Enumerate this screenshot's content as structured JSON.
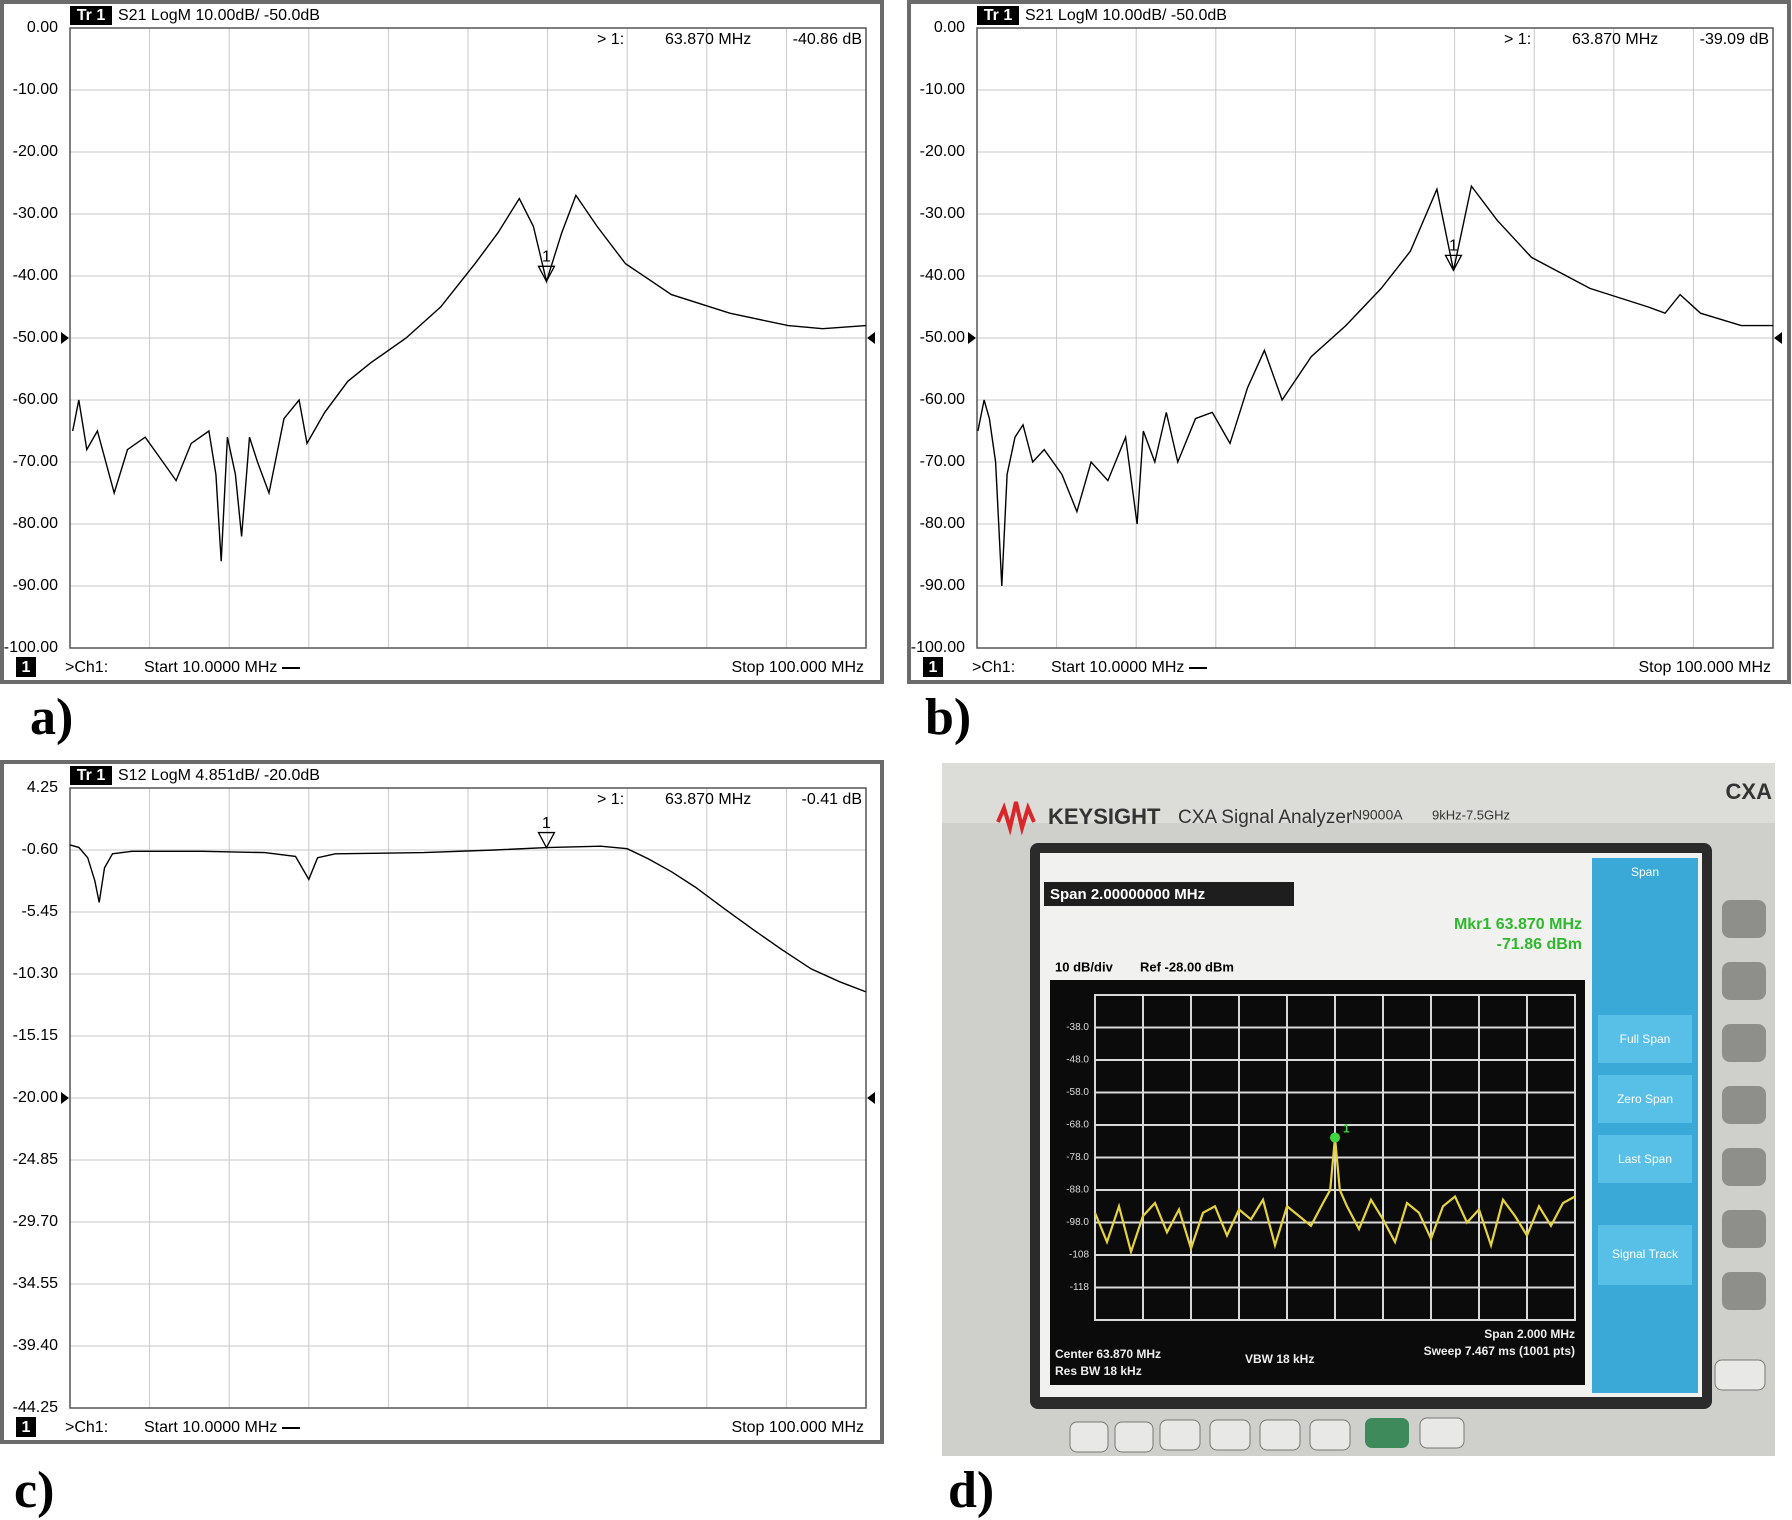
{
  "chart_data": [
    {
      "type": "line",
      "panel_label": "a)",
      "trace": "Tr 1",
      "title": "S21 LogM 10.00dB/ -50.0dB",
      "channel_number": "1",
      "channel": ">Ch1:",
      "start": "Start 10.0000 MHz",
      "stop": "Stop 100.000 MHz",
      "xlim": [
        10,
        100
      ],
      "xticks": [
        10,
        19,
        28,
        37,
        46,
        55,
        64,
        73,
        82,
        91,
        100
      ],
      "ylim": [
        -100,
        0
      ],
      "yticks": [
        {
          "value": 0,
          "label": "0.00"
        },
        {
          "value": -10,
          "label": "-10.00"
        },
        {
          "value": -20,
          "label": "-20.00"
        },
        {
          "value": -30,
          "label": "-30.00"
        },
        {
          "value": -40,
          "label": "-40.00"
        },
        {
          "value": -50,
          "label": "-50.00"
        },
        {
          "value": -60,
          "label": "-60.00"
        },
        {
          "value": -70,
          "label": "-70.00"
        },
        {
          "value": -80,
          "label": "-80.00"
        },
        {
          "value": -90,
          "label": "-90.00"
        },
        {
          "value": -100,
          "label": "-100.00"
        }
      ],
      "grid": true,
      "reference_level": -50,
      "x": [
        10.3,
        11,
        11.9,
        13.1,
        15,
        16.5,
        18.5,
        20.5,
        22,
        23.7,
        25.7,
        26.5,
        27.1,
        27.8,
        28.7,
        29.4,
        30.3,
        31.2,
        32.5,
        34.2,
        35.9,
        36.8,
        38.8,
        41.4,
        44,
        48,
        51.9,
        55.8,
        58.4,
        60.8,
        62.4,
        63.87,
        65.6,
        67.2,
        69.6,
        72.8,
        78,
        84.6,
        91.2,
        95.1,
        100
      ],
      "series": [
        {
          "color": "#000000",
          "values": [
            -65,
            -60,
            -68,
            -65,
            -75,
            -68,
            -66,
            -70,
            -73,
            -67,
            -65,
            -72,
            -86,
            -66,
            -72,
            -82,
            -66,
            -70,
            -75,
            -63,
            -60,
            -67,
            -62,
            -57,
            -54,
            -50,
            -45,
            -38,
            -33,
            -27.5,
            -32,
            -40.86,
            -33,
            -27,
            -32,
            -38,
            -43,
            -46,
            -48,
            -48.5,
            -48
          ]
        }
      ],
      "marker": {
        "label": "1",
        "prefix": "> 1:",
        "x": 63.87,
        "x_label": "63.870 MHz",
        "value": -40.86,
        "value_label": "-40.86 dB"
      }
    },
    {
      "type": "line",
      "panel_label": "b)",
      "trace": "Tr 1",
      "title": "S21 LogM 10.00dB/ -50.0dB",
      "channel_number": "1",
      "channel": ">Ch1:",
      "start": "Start 10.0000 MHz",
      "stop": "Stop 100.000 MHz",
      "xlim": [
        10,
        100
      ],
      "xticks": [
        10,
        19,
        28,
        37,
        46,
        55,
        64,
        73,
        82,
        91,
        100
      ],
      "ylim": [
        -100,
        0
      ],
      "yticks": [
        {
          "value": 0,
          "label": "0.00"
        },
        {
          "value": -10,
          "label": "-10.00"
        },
        {
          "value": -20,
          "label": "-20.00"
        },
        {
          "value": -30,
          "label": "-30.00"
        },
        {
          "value": -40,
          "label": "-40.00"
        },
        {
          "value": -50,
          "label": "-50.00"
        },
        {
          "value": -60,
          "label": "-60.00"
        },
        {
          "value": -70,
          "label": "-70.00"
        },
        {
          "value": -80,
          "label": "-80.00"
        },
        {
          "value": -90,
          "label": "-90.00"
        },
        {
          "value": -100,
          "label": "-100.00"
        }
      ],
      "grid": true,
      "reference_level": -50,
      "x": [
        10.1,
        10.8,
        11.4,
        12.1,
        12.8,
        13.4,
        14.3,
        15.2,
        16.3,
        17.6,
        19.6,
        21.3,
        22.9,
        24.8,
        26.8,
        28.1,
        28.8,
        30.1,
        31.4,
        32.7,
        34.7,
        36.6,
        38.6,
        40.6,
        42.5,
        44.5,
        47.8,
        51.7,
        55.7,
        59,
        62,
        63.87,
        65.9,
        68.8,
        72.7,
        79.3,
        85.9,
        87.8,
        89.5,
        91.8,
        96.4,
        100
      ],
      "series": [
        {
          "color": "#000000",
          "values": [
            -65,
            -60,
            -63,
            -70,
            -90,
            -72,
            -66,
            -64,
            -70,
            -68,
            -72,
            -78,
            -70,
            -73,
            -66,
            -80,
            -65,
            -70,
            -62,
            -70,
            -63,
            -62,
            -67,
            -58,
            -52,
            -60,
            -53,
            -48,
            -42,
            -36,
            -26,
            -39.09,
            -25.5,
            -31,
            -37,
            -42,
            -45,
            -46,
            -43,
            -46,
            -48,
            -48
          ]
        }
      ],
      "marker": {
        "label": "1",
        "prefix": "> 1:",
        "x": 63.87,
        "x_label": "63.870 MHz",
        "value": -39.09,
        "value_label": "-39.09 dB"
      }
    },
    {
      "type": "line",
      "panel_label": "c)",
      "trace": "Tr 1",
      "title": "S12 LogM 4.851dB/ -20.0dB",
      "channel_number": "1",
      "channel": ">Ch1:",
      "start": "Start 10.0000 MHz",
      "stop": "Stop 100.000 MHz",
      "xlim": [
        10,
        100
      ],
      "xticks": [
        10,
        19,
        28,
        37,
        46,
        55,
        64,
        73,
        82,
        91,
        100
      ],
      "ylim": [
        -44.25,
        4.25
      ],
      "yticks": [
        4.25,
        {
          "value": -0.6,
          "label": "-0.60"
        },
        -5.45,
        {
          "value": -10.3,
          "label": "-10.30"
        },
        -15.15,
        {
          "value": -20,
          "label": "-20.00"
        },
        -24.85,
        {
          "value": -29.7,
          "label": "-29.70"
        },
        -34.55,
        {
          "value": -39.4,
          "label": "-39.40"
        },
        -44.25
      ],
      "grid": true,
      "reference_level": -20,
      "x": [
        10,
        11,
        12,
        12.8,
        13.3,
        13.9,
        14.8,
        17,
        25,
        32,
        35.5,
        37,
        38,
        40,
        50,
        58,
        63.87,
        70,
        73,
        75.4,
        78,
        80.7,
        84,
        87.2,
        90.5,
        93.8,
        97,
        100
      ],
      "series": [
        {
          "color": "#000000",
          "values": [
            -0.2,
            -0.4,
            -1.2,
            -3,
            -4.7,
            -2,
            -0.9,
            -0.7,
            -0.7,
            -0.8,
            -1.1,
            -2.9,
            -1.2,
            -0.9,
            -0.8,
            -0.6,
            -0.41,
            -0.3,
            -0.5,
            -1.3,
            -2.3,
            -3.5,
            -5.2,
            -6.8,
            -8.4,
            -9.9,
            -10.9,
            -11.7
          ]
        }
      ],
      "marker": {
        "label": "1",
        "prefix": "> 1:",
        "x": 63.87,
        "x_label": "63.870 MHz",
        "value": -0.41,
        "value_label": "-0.41 dB"
      }
    },
    {
      "type": "spectrum",
      "panel_label": "d)",
      "brand": "KEYSIGHT",
      "model": "CXA Signal Analyzer",
      "model_number": "N9000A",
      "frequency_range": "9kHz-7.5GHz",
      "badge": "CXA",
      "span": "Span 2.00000000 MHz",
      "scale": "10 dB/div",
      "reference": "Ref -28.00 dBm",
      "center": "Center 63.870 MHz",
      "res_bw": "Res BW 18 kHz",
      "vbw": "VBW 18 kHz",
      "span_footer": "Span 2.000 MHz",
      "sweep": "Sweep 7.467 ms (1001 pts)",
      "softkeys": [
        "Span",
        "Full Span",
        "Zero Span",
        "Last Span",
        "Signal Track"
      ],
      "xlim": [
        62.87,
        64.87
      ],
      "xticks": [
        62.87,
        63.07,
        63.27,
        63.47,
        63.67,
        63.87,
        64.07,
        64.27,
        64.47,
        64.67,
        64.87
      ],
      "ylim": [
        -128,
        -28
      ],
      "yticks": [
        {
          "value": -38,
          "label": "-38.0"
        },
        {
          "value": -48,
          "label": "-48.0"
        },
        {
          "value": -58,
          "label": "-58.0"
        },
        {
          "value": -68,
          "label": "-68.0"
        },
        {
          "value": -78,
          "label": "-78.0"
        },
        {
          "value": -88,
          "label": "-88.0"
        },
        {
          "value": -98,
          "label": "-98.0"
        },
        -108,
        -118
      ],
      "grid": true,
      "x": [
        62.87,
        62.92,
        62.97,
        63.02,
        63.07,
        63.12,
        63.17,
        63.22,
        63.27,
        63.32,
        63.37,
        63.42,
        63.47,
        63.52,
        63.57,
        63.62,
        63.67,
        63.72,
        63.77,
        63.82,
        63.85,
        63.87,
        63.89,
        63.92,
        63.97,
        64.02,
        64.07,
        64.12,
        64.17,
        64.22,
        64.27,
        64.32,
        64.37,
        64.42,
        64.47,
        64.52,
        64.57,
        64.62,
        64.67,
        64.72,
        64.77,
        64.82,
        64.87
      ],
      "series": [
        {
          "color": "#e6d23c",
          "values": [
            -95,
            -104,
            -93,
            -107,
            -96,
            -92,
            -101,
            -94,
            -106,
            -95,
            -93,
            -102,
            -94,
            -97,
            -91,
            -105,
            -93,
            -96,
            -99,
            -92,
            -88,
            -71.86,
            -88,
            -93,
            -100,
            -91,
            -97,
            -104,
            -92,
            -95,
            -103,
            -93,
            -90,
            -98,
            -94,
            -105,
            -91,
            -96,
            -102,
            -93,
            -99,
            -92,
            -90
          ]
        }
      ],
      "marker": {
        "label": "1",
        "text": "Mkr1 63.870 MHz",
        "x": 63.87,
        "value": -71.86,
        "value_label": "-71.86 dBm"
      }
    }
  ]
}
